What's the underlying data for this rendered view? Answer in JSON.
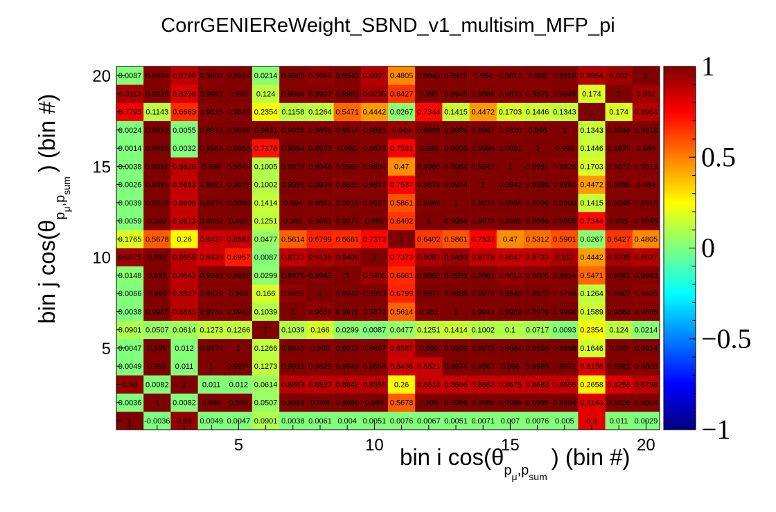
{
  "chart_data": {
    "type": "heatmap",
    "title": "CorrGENIEReWeight_SBND_v1_multisim_MFP_pi",
    "xlabel": "bin i cos(θ_{p⃗_{μ},p⃗_{sum}}) (bin #)",
    "ylabel": "bin j cos(θ_{p⃗_{μ},p⃗_{sum}}) (bin #)",
    "xlabel_parts": {
      "pre": "bin i cos(θ",
      "sub1": "p",
      "sub2": "μ",
      "sub3": ",",
      "sub4": "p",
      "sub5": "sum",
      "post": ") (bin #)"
    },
    "ylabel_parts": {
      "pre": "bin j cos(θ",
      "sub1": "p",
      "sub2": "μ",
      "sub3": ",",
      "sub4": "p",
      "sub5": "sum",
      "post": ") (bin #)"
    },
    "nbins": 20,
    "x_ticks": [
      "5",
      "10",
      "15",
      "20"
    ],
    "y_ticks": [
      "5",
      "10",
      "15",
      "20"
    ],
    "z_range": [
      -1,
      1
    ],
    "colorbar_ticks": [
      "1",
      "0.5",
      "0",
      "−0.5",
      "−1"
    ],
    "colormap": [
      "#00007f",
      "#0000ff",
      "#007fff",
      "#00ffff",
      "#7fff7f",
      "#ffff00",
      "#ff7f00",
      "#ff0000",
      "#7f0000"
    ],
    "values": [
      [
        1,
        -0.0036,
        0.96,
        0.0049,
        0.0047,
        0.0901,
        0.0038,
        0.0061,
        0.004,
        0.0051,
        0.0076,
        0.0067,
        0.0051,
        0.0071,
        0.007,
        0.0076,
        0.005,
        0.8,
        0.011,
        0.0029
      ],
      [
        0.0036,
        1,
        0.0082,
        0.998,
        0.999,
        0.0507,
        0.9965,
        0.998,
        0.9986,
        0.998,
        0.5678,
        0.999,
        0.9996,
        0.9989,
        0.9986,
        0.9995,
        0.9994,
        0.8143,
        0.9926,
        0.9904
      ],
      [
        0.96,
        0.0082,
        1,
        0.011,
        0.012,
        0.0614,
        0.8863,
        0.8827,
        0.8842,
        0.8855,
        0.26,
        0.8613,
        0.8606,
        0.8683,
        0.8675,
        0.8683,
        0.8655,
        0.2658,
        0.8258,
        0.8798
      ],
      [
        0.0049,
        0.998,
        0.011,
        1,
        0.9974,
        0.1273,
        0.9931,
        0.9829,
        0.9949,
        0.9854,
        0.8438,
        0.8521,
        0.9974,
        0.9887,
        0.998,
        0.9989,
        0.9972,
        0.8158,
        0.9961,
        0.9803
      ],
      [
        0.0047,
        0.999,
        0.012,
        0.9974,
        1,
        0.1266,
        0.9943,
        0.988,
        0.9919,
        0.9857,
        0.8587,
        0.996,
        0.9999,
        0.9975,
        0.9984,
        0.9996,
        0.9998,
        0.1646,
        0.995,
        0.9914
      ],
      [
        0.0901,
        0.0507,
        0.0614,
        0.1273,
        0.1266,
        1,
        0.1039,
        0.166,
        0.0299,
        0.0087,
        0.0477,
        0.1251,
        0.1414,
        0.1002,
        0.1,
        0.0717,
        0.0093,
        0.2354,
        0.124,
        0.0214
      ],
      [
        0.0038,
        0.9965,
        0.8863,
        0.9931,
        0.9943,
        0.1039,
        1,
        0.9659,
        0.9976,
        0.9872,
        0.5614,
        0.981,
        1,
        0.9941,
        0.9989,
        0.9976,
        0.9994,
        0.1589,
        0.9884,
        0.9865
      ],
      [
        0.0066,
        0.998,
        0.8827,
        0.9829,
        0.988,
        0.166,
        0.9659,
        1,
        0.9943,
        0.9913,
        0.6799,
        0.9977,
        0.9988,
        0.9975,
        0.9946,
        0.9972,
        0.9798,
        0.1264,
        0.9907,
        0.9665
      ],
      [
        0.0148,
        0.998,
        0.8842,
        0.9949,
        0.9919,
        0.0299,
        0.9976,
        0.9943,
        1,
        0.9405,
        0.6661,
        0.9963,
        0.9991,
        0.9962,
        0.9612,
        0.9805,
        0.9914,
        0.5471,
        0.9961,
        0.9943
      ],
      [
        0.9375,
        0.998,
        0.8855,
        0.8425,
        0.6957,
        0.0087,
        0.8722,
        0.9136,
        0.9406,
        1,
        0.7373,
        0.9087,
        0.9493,
        0.8778,
        0.8547,
        0.8733,
        0.912,
        0.4442,
        0.9235,
        0.8927
      ],
      [
        0.1765,
        0.5678,
        0.26,
        0.8437,
        0.8587,
        0.0477,
        0.5614,
        0.6799,
        0.6661,
        0.7373,
        1,
        0.6402,
        0.5861,
        0.7537,
        0.47,
        0.5312,
        0.5901,
        0.0267,
        0.6427,
        0.4805
      ],
      [
        0.0059,
        0.999,
        0.8613,
        0.9952,
        0.996,
        0.1251,
        0.995,
        0.9881,
        0.9977,
        0.996,
        0.6402,
        1,
        0.9966,
        0.9878,
        0.9965,
        0.9986,
        0.9968,
        0.7344,
        0.995,
        0.9945
      ],
      [
        0.0039,
        0.9996,
        0.8606,
        0.9974,
        0.9999,
        0.1414,
        0.994,
        0.9883,
        0.9916,
        0.9937,
        0.5861,
        0.9966,
        1,
        0.9974,
        0.9984,
        0.9996,
        0.9999,
        0.1415,
        0.9945,
        0.9915
      ],
      [
        0.0026,
        0.9989,
        0.8683,
        0.9887,
        0.9975,
        0.1002,
        0.9992,
        0.9975,
        0.9826,
        0.9877,
        0.7537,
        0.9878,
        0.9974,
        1,
        0.9942,
        0.9998,
        0.9967,
        0.4472,
        0.9886,
        0.984
      ],
      [
        0.0038,
        0.9986,
        0.8816,
        0.998,
        0.9849,
        0.1005,
        0.9976,
        0.9946,
        0.9961,
        0.9854,
        0.47,
        0.9965,
        0.9984,
        0.9942,
        1,
        0.9951,
        0.9826,
        0.1703,
        0.9872,
        0.9813
      ],
      [
        0.0014,
        0.9995,
        0.0032,
        0.9983,
        0.9966,
        0.7176,
        0.9994,
        0.9972,
        0.998,
        0.9873,
        0.7531,
        0.998,
        0.9996,
        0.9998,
        0.9951,
        1,
        0.996,
        0.1446,
        0.9875,
        0.988
      ],
      [
        0.0024,
        0.9993,
        0.0055,
        0.9972,
        0.9996,
        0.9931,
        0.9928,
        0.9898,
        0.9914,
        0.9891,
        0.949,
        0.9968,
        0.9999,
        0.9967,
        0.9826,
        0.996,
        1,
        0.1343,
        0.9946,
        0.9918
      ],
      [
        0.7793,
        0.1143,
        0.6683,
        0.9815,
        0.9846,
        0.2354,
        0.1158,
        0.1264,
        0.5471,
        0.4442,
        0.0267,
        0.7344,
        0.1415,
        0.4472,
        0.1703,
        0.1446,
        0.1343,
        1,
        0.174,
        0.8964
      ],
      [
        0.9113,
        0.9926,
        0.8258,
        0.9961,
        0.995,
        0.124,
        0.9884,
        0.9907,
        0.9961,
        0.9235,
        0.6427,
        0.995,
        0.9945,
        0.9886,
        0.9872,
        0.9875,
        0.9946,
        0.174,
        1,
        0.932
      ],
      [
        0.0087,
        0.9904,
        0.8798,
        0.9803,
        0.9914,
        0.0214,
        0.9865,
        0.9665,
        0.9943,
        0.8927,
        0.4805,
        0.9945,
        0.9915,
        0.984,
        0.9813,
        0.988,
        0.9918,
        0.8964,
        0.932,
        1
      ]
    ]
  }
}
